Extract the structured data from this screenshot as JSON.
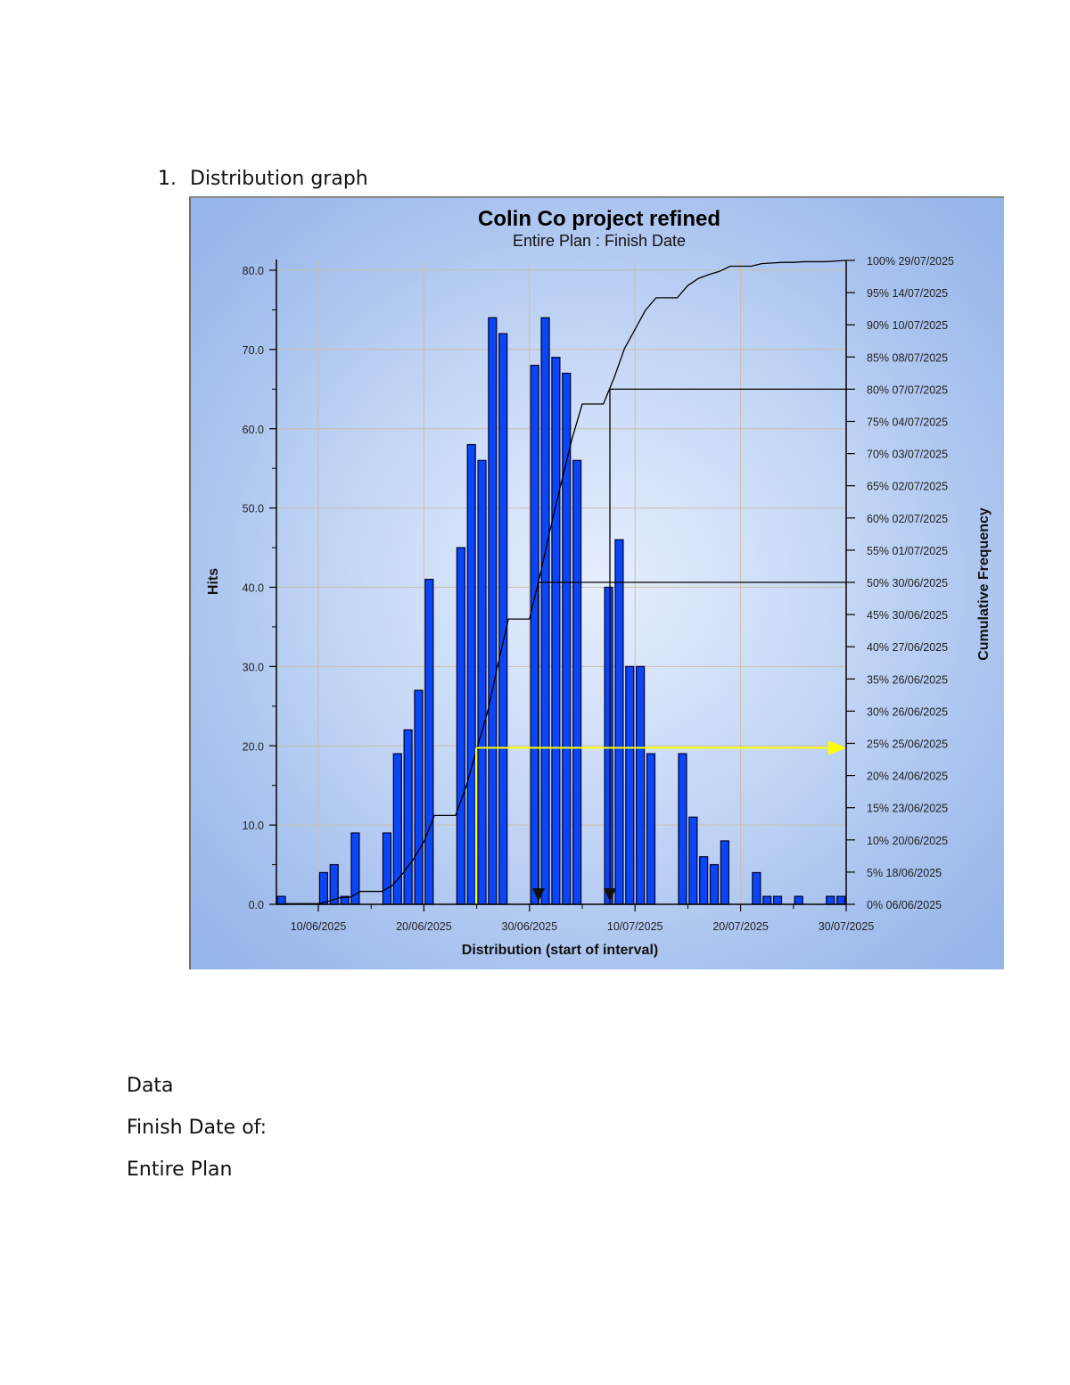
{
  "document": {
    "heading_number": "1.",
    "heading_text": "Distribution graph",
    "paragraphs": [
      "Data",
      "Finish Date of:",
      "Entire Plan"
    ]
  },
  "chart": {
    "title": "Colin Co project refined",
    "subtitle": "Entire Plan : Finish Date",
    "xlabel": "Distribution (start of interval)",
    "ylabel": "Hits",
    "y2label": "Cumulative Frequency",
    "colors": {
      "bar_fill": "#0a46f5",
      "bar_stroke": "#000033",
      "cumulative_line": "#000000",
      "marker_line": "#000000",
      "highlight_line": "#ffff00",
      "grid": "#c9c0a8"
    }
  },
  "chart_data": {
    "type": "bar",
    "title": "Colin Co project refined",
    "subtitle": "Entire Plan : Finish Date",
    "xlabel": "Distribution (start of interval)",
    "ylabel": "Hits",
    "y2label": "Cumulative Frequency",
    "ylim": [
      0,
      80
    ],
    "y_ticks": [
      "0.0",
      "10.0",
      "20.0",
      "30.0",
      "40.0",
      "50.0",
      "60.0",
      "70.0",
      "80.0"
    ],
    "x_ticks": [
      "10/06/2025",
      "20/06/2025",
      "30/06/2025",
      "10/07/2025",
      "20/07/2025",
      "30/07/2025"
    ],
    "grid": true,
    "categories": [
      "06/06/2025",
      "10/06/2025",
      "11/06/2025",
      "12/06/2025",
      "13/06/2025",
      "16/06/2025",
      "17/06/2025",
      "18/06/2025",
      "19/06/2025",
      "20/06/2025",
      "23/06/2025",
      "24/06/2025",
      "25/06/2025",
      "26/06/2025",
      "27/06/2025",
      "30/06/2025",
      "01/07/2025",
      "02/07/2025",
      "03/07/2025",
      "04/07/2025",
      "07/07/2025",
      "08/07/2025",
      "09/07/2025",
      "10/07/2025",
      "11/07/2025",
      "14/07/2025",
      "15/07/2025",
      "16/07/2025",
      "17/07/2025",
      "18/07/2025",
      "21/07/2025",
      "22/07/2025",
      "23/07/2025",
      "25/07/2025",
      "28/07/2025",
      "29/07/2025"
    ],
    "values": [
      1,
      4,
      5,
      1,
      9,
      9,
      19,
      22,
      27,
      41,
      45,
      58,
      56,
      74,
      72,
      68,
      74,
      69,
      67,
      56,
      40,
      46,
      30,
      30,
      19,
      19,
      11,
      6,
      5,
      8,
      4,
      1,
      1,
      1,
      1,
      1
    ],
    "day_offsets": [
      -4,
      0,
      1,
      2,
      3,
      6,
      7,
      8,
      9,
      10,
      13,
      14,
      15,
      16,
      17,
      20,
      21,
      22,
      23,
      24,
      27,
      28,
      29,
      30,
      31,
      34,
      35,
      36,
      37,
      38,
      41,
      42,
      43,
      45,
      48,
      49
    ],
    "cumulative_frequency": [
      {
        "pct": "0%",
        "date": "06/06/2025"
      },
      {
        "pct": "5%",
        "date": "18/06/2025"
      },
      {
        "pct": "10%",
        "date": "20/06/2025"
      },
      {
        "pct": "15%",
        "date": "23/06/2025"
      },
      {
        "pct": "20%",
        "date": "24/06/2025"
      },
      {
        "pct": "25%",
        "date": "25/06/2025"
      },
      {
        "pct": "30%",
        "date": "26/06/2025"
      },
      {
        "pct": "35%",
        "date": "26/06/2025"
      },
      {
        "pct": "40%",
        "date": "27/06/2025"
      },
      {
        "pct": "45%",
        "date": "30/06/2025"
      },
      {
        "pct": "50%",
        "date": "30/06/2025"
      },
      {
        "pct": "55%",
        "date": "01/07/2025"
      },
      {
        "pct": "60%",
        "date": "02/07/2025"
      },
      {
        "pct": "65%",
        "date": "02/07/2025"
      },
      {
        "pct": "70%",
        "date": "03/07/2025"
      },
      {
        "pct": "75%",
        "date": "04/07/2025"
      },
      {
        "pct": "80%",
        "date": "07/07/2025"
      },
      {
        "pct": "85%",
        "date": "08/07/2025"
      },
      {
        "pct": "90%",
        "date": "10/07/2025"
      },
      {
        "pct": "95%",
        "date": "14/07/2025"
      },
      {
        "pct": "100%",
        "date": "29/07/2025"
      }
    ],
    "markers": [
      {
        "label": "50%",
        "date": "30/06/2025",
        "color": "#000000"
      },
      {
        "label": "80%",
        "date": "07/07/2025",
        "color": "#000000"
      },
      {
        "label": "25%",
        "date": "25/06/2025",
        "color": "#ffff00",
        "arrow": true
      }
    ],
    "legend": "none"
  }
}
